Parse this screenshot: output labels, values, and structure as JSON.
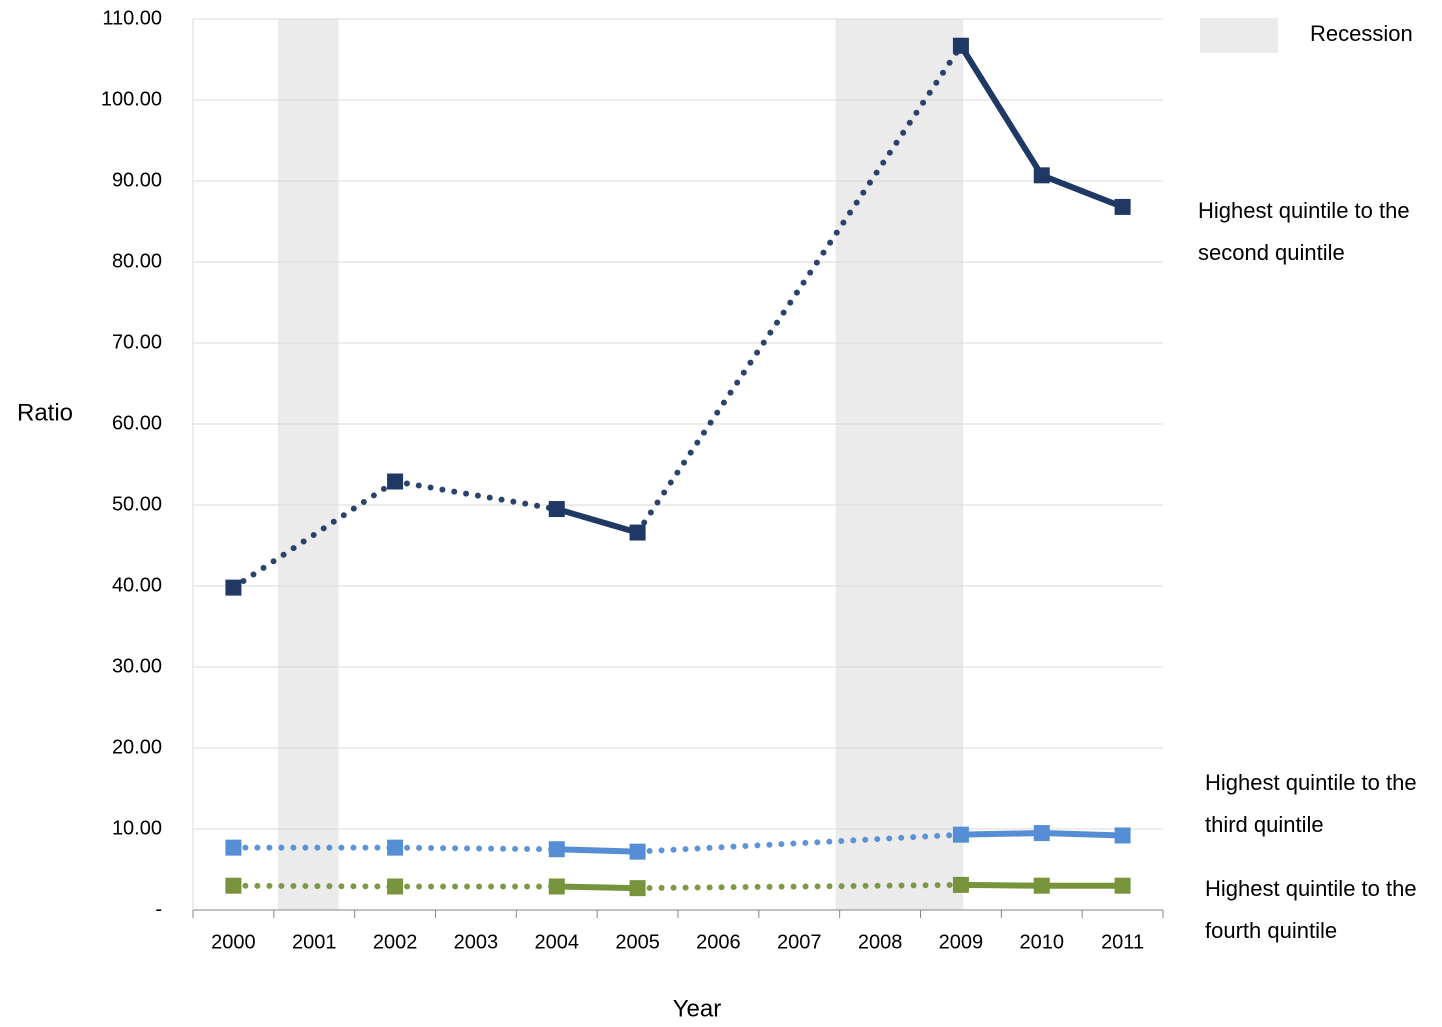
{
  "chart_data": {
    "type": "line",
    "x_label": "Year",
    "y_label": "Ratio",
    "x": [
      2000,
      2001,
      2002,
      2003,
      2004,
      2005,
      2006,
      2007,
      2008,
      2009,
      2010,
      2011
    ],
    "xlim": [
      1999.5,
      2011.5
    ],
    "ylim": [
      0,
      110
    ],
    "yticks": [
      {
        "value": 0,
        "label": "-"
      },
      {
        "value": 10,
        "label": "10.00"
      },
      {
        "value": 20,
        "label": "20.00"
      },
      {
        "value": 30,
        "label": "30.00"
      },
      {
        "value": 40,
        "label": "40.00"
      },
      {
        "value": 50,
        "label": "50.00"
      },
      {
        "value": 60,
        "label": "60.00"
      },
      {
        "value": 70,
        "label": "70.00"
      },
      {
        "value": 80,
        "label": "80.00"
      },
      {
        "value": 90,
        "label": "90.00"
      },
      {
        "value": 100,
        "label": "100.00"
      },
      {
        "value": 110,
        "label": "110.00"
      }
    ],
    "grid": true,
    "recession_label": "Recession",
    "recession_color": "#ebebeb",
    "recession_periods": [
      {
        "start": 2000.55,
        "end": 2001.3
      },
      {
        "start": 2007.45,
        "end": 2009.03
      }
    ],
    "series": [
      {
        "name": "Highest quintile to the second quintile",
        "color": "#1f3864",
        "values": [
          39.8,
          null,
          52.9,
          null,
          49.5,
          46.6,
          null,
          null,
          null,
          106.7,
          90.7,
          86.8
        ]
      },
      {
        "name": "Highest quintile to the third quintile",
        "color": "#558ed5",
        "values": [
          7.7,
          null,
          7.7,
          null,
          7.5,
          7.2,
          null,
          null,
          null,
          9.3,
          9.5,
          9.2
        ]
      },
      {
        "name": "Highest quintile to the fourth quintile",
        "color": "#77933c",
        "values": [
          3.0,
          null,
          2.9,
          null,
          2.9,
          2.7,
          null,
          null,
          null,
          3.1,
          3.0,
          3.0
        ]
      }
    ]
  }
}
